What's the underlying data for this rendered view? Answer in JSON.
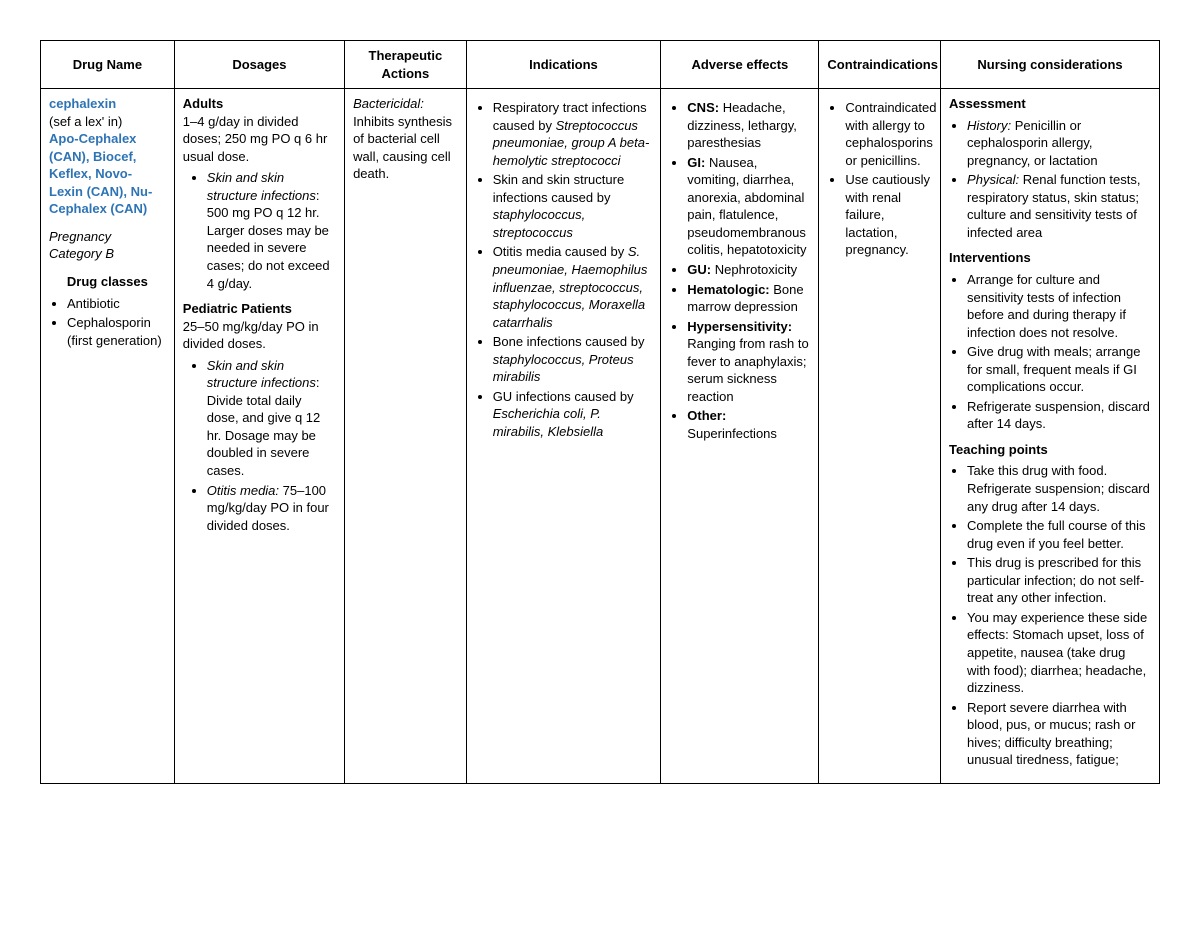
{
  "columns": {
    "drug_name": "Drug Name",
    "dosages": "Dosages",
    "therapeutic": "Therapeutic Actions",
    "indications": "Indications",
    "adverse": "Adverse effects",
    "contra": "Contraindications",
    "nursing": "Nursing considerations"
  },
  "col_widths": [
    "11%",
    "14%",
    "10%",
    "16%",
    "13%",
    "10%",
    "18%"
  ],
  "drug_name": {
    "generic": "cephalexin",
    "pronunciation": "(sef a lex' in)",
    "brands": "Apo-Cephalex (CAN), Biocef, Keflex, Novo-Lexin (CAN), Nu-Cephalex (CAN)",
    "pregnancy": "Pregnancy Category B",
    "classes_label": "Drug classes",
    "classes": [
      "Antibiotic",
      "Cephalosporin (first generation)"
    ]
  },
  "dosages": {
    "adults_label": "Adults",
    "adults_text": "1–4 g/day in divided doses; 250 mg PO q 6 hr usual dose.",
    "adults_items": [
      {
        "title": "Skin and skin structure infections",
        "text": ": 500 mg PO q 12 hr. Larger doses may be needed in severe cases; do not exceed 4 g/day."
      }
    ],
    "peds_label": "Pediatric Patients",
    "peds_text": "25–50 mg/kg/day PO in divided doses.",
    "peds_items": [
      {
        "title": "Skin and skin structure infections",
        "text": ": Divide total daily dose, and give q 12 hr. Dosage may be doubled in severe cases."
      },
      {
        "title": "Otitis media:",
        "text": " 75–100 mg/kg/day PO in four divided doses."
      }
    ]
  },
  "therapeutic": {
    "title": "Bactericidal:",
    "text": " Inhibits synthesis of bacterial cell wall, causing cell death."
  },
  "indications": [
    {
      "pre": "Respiratory tract infections caused by ",
      "it": "Streptococcus pneumoniae, group A beta-hemolytic streptococci"
    },
    {
      "pre": "Skin and skin structure infections caused by ",
      "it": "staphylococcus, streptococcus"
    },
    {
      "pre": "Otitis media caused by ",
      "it": "S. pneumoniae, Haemophilus influenzae, streptococcus, staphylococcus, Moraxella catarrhalis"
    },
    {
      "pre": "Bone infections caused by ",
      "it": "staphylococcus, Proteus mirabilis"
    },
    {
      "pre": "GU infections caused by ",
      "it": "Escherichia coli, P. mirabilis, Klebsiella"
    }
  ],
  "adverse": [
    {
      "label": "CNS:",
      "text": " Headache, dizziness, lethargy, paresthesias"
    },
    {
      "label": "GI:",
      "text": " Nausea, vomiting, diarrhea, anorexia, abdominal pain, flatulence, pseudomembranous colitis, hepatotoxicity"
    },
    {
      "label": "GU:",
      "text": " Nephrotoxicity"
    },
    {
      "label": "Hematologic:",
      "text": " Bone marrow depression"
    },
    {
      "label": "Hypersensitivity:",
      "text": " Ranging from rash to fever to anaphylaxis; serum sickness reaction"
    },
    {
      "label": "Other:",
      "text": " Superinfections"
    }
  ],
  "contra": [
    "Contraindicated with allergy to cephalosporins or penicillins.",
    "Use cautiously with renal failure, lactation, pregnancy."
  ],
  "nursing": {
    "assessment_label": "Assessment",
    "assessment_items": [
      {
        "title": "History:",
        "text": " Penicillin or cephalosporin allergy, pregnancy, or lactation"
      },
      {
        "title": "Physical:",
        "text": " Renal function tests, respiratory status, skin status; culture and sensitivity tests of infected area"
      }
    ],
    "interventions_label": "Interventions",
    "interventions_items": [
      "Arrange for culture and sensitivity tests of infection before and during therapy if infection does not resolve.",
      "Give drug with meals; arrange for small, frequent meals if GI complications occur.",
      "Refrigerate suspension, discard after 14 days."
    ],
    "teaching_label": "Teaching points",
    "teaching_items": [
      "Take this drug with food. Refrigerate suspension; discard any drug after 14 days.",
      "Complete the full course of this drug even if you feel better.",
      "This drug is prescribed for this particular infection; do not self-treat any other infection.",
      "You may experience these side effects: Stomach upset, loss of appetite, nausea (take drug with food); diarrhea; headache, dizziness.",
      "Report severe diarrhea with blood, pus, or mucus; rash or hives; difficulty breathing; unusual tiredness, fatigue;"
    ]
  }
}
